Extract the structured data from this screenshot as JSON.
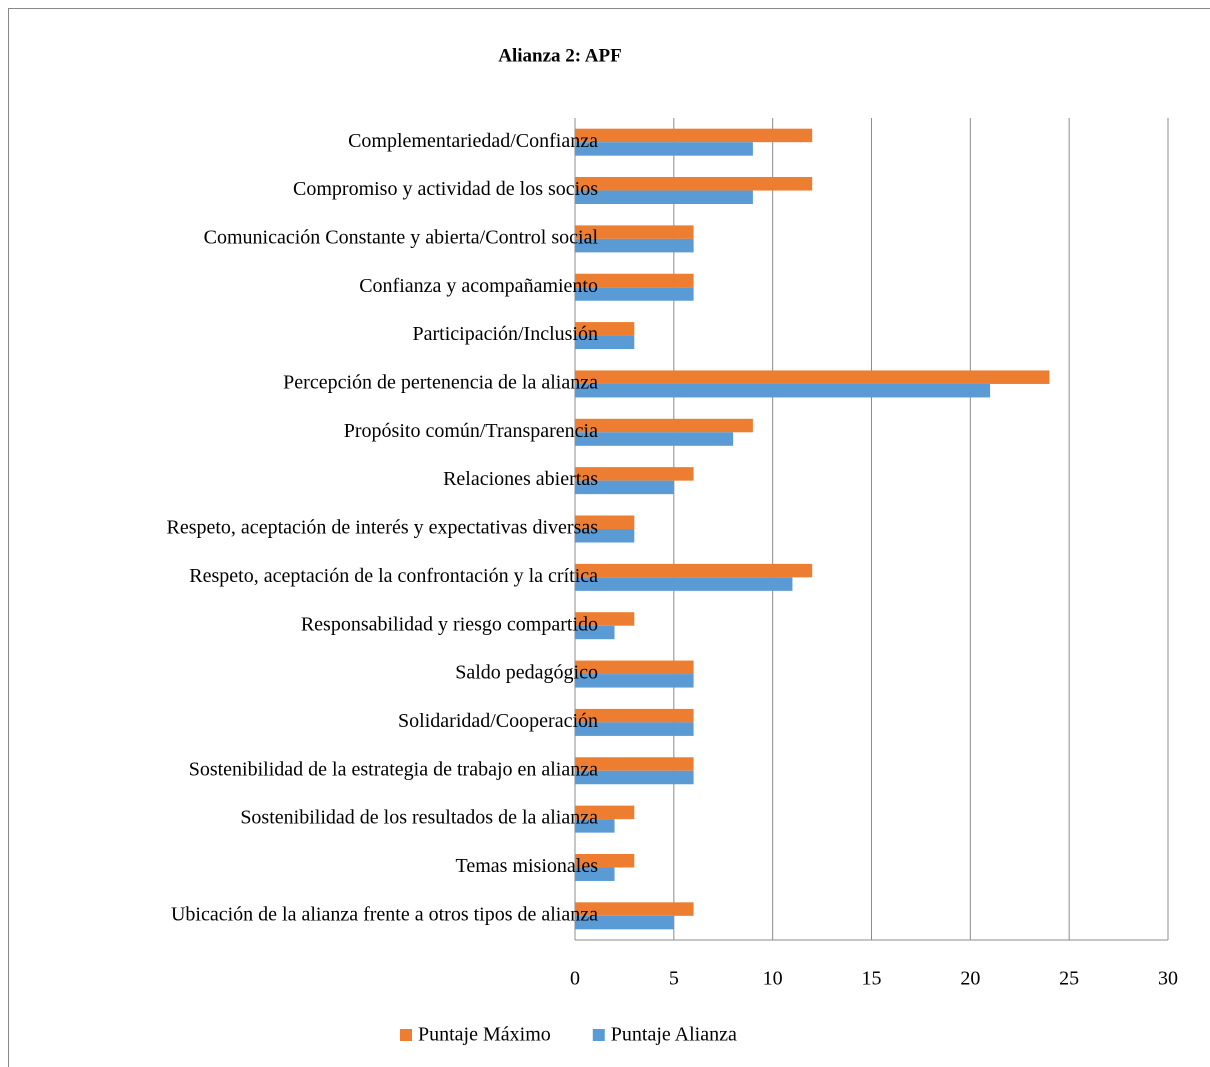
{
  "chart_data": {
    "type": "barh",
    "title": "Alianza 2: APF",
    "categories": [
      "Complementariedad/Confianza",
      "Compromiso y actividad de los socios",
      "Comunicación Constante y abierta/Control social",
      "Confianza y acompañamiento",
      "Participación/Inclusión",
      "Percepción de pertenencia de la alianza",
      "Propósito común/Transparencia",
      "Relaciones abiertas",
      "Respeto, aceptación de interés y expectativas diversas",
      "Respeto, aceptación de la confrontación y la crítica",
      "Responsabilidad y riesgo compartido",
      "Saldo pedagógico",
      "Solidaridad/Cooperación",
      "Sostenibilidad de la estrategia de trabajo en alianza",
      "Sostenibilidad de los resultados de la alianza",
      "Temas misionales",
      "Ubicación de la alianza frente a otros tipos de alianza"
    ],
    "series": [
      {
        "name": "Puntaje Máximo",
        "color": "#ed7d31",
        "values": [
          12,
          12,
          6,
          6,
          3,
          24,
          9,
          6,
          3,
          12,
          3,
          6,
          6,
          6,
          3,
          3,
          6
        ]
      },
      {
        "name": "Puntaje Alianza",
        "color": "#5b9bd5",
        "values": [
          9,
          9,
          6,
          6,
          3,
          21,
          8,
          5,
          3,
          11,
          2,
          6,
          6,
          6,
          2,
          2,
          5
        ]
      }
    ],
    "xlim": [
      0,
      30
    ],
    "xticks": [
      0,
      5,
      10,
      15,
      20,
      25,
      30
    ],
    "grid": true,
    "legend": "bottom"
  }
}
